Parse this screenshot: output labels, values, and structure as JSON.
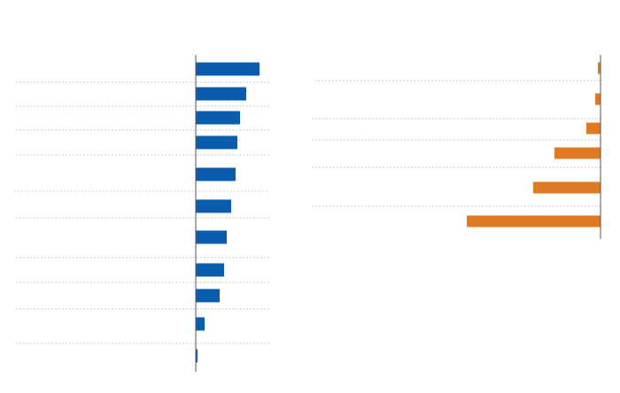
{
  "chart_data": [
    {
      "type": "bar",
      "orientation": "horizontal",
      "color": "#0a5cad",
      "categories": [
        null,
        null,
        null,
        null,
        null,
        null,
        null,
        null,
        null,
        null,
        null
      ],
      "values": [
        72,
        57,
        50,
        47,
        45,
        40,
        35,
        32,
        27,
        10,
        2
      ],
      "xlim": [
        0,
        84
      ]
    },
    {
      "type": "bar",
      "orientation": "horizontal",
      "color": "#e07a22",
      "categories": [
        null,
        null,
        null,
        null,
        null,
        null
      ],
      "values": [
        -3,
        -6,
        -16,
        -52,
        -76,
        -151
      ],
      "xlim": [
        -326,
        0
      ]
    }
  ]
}
